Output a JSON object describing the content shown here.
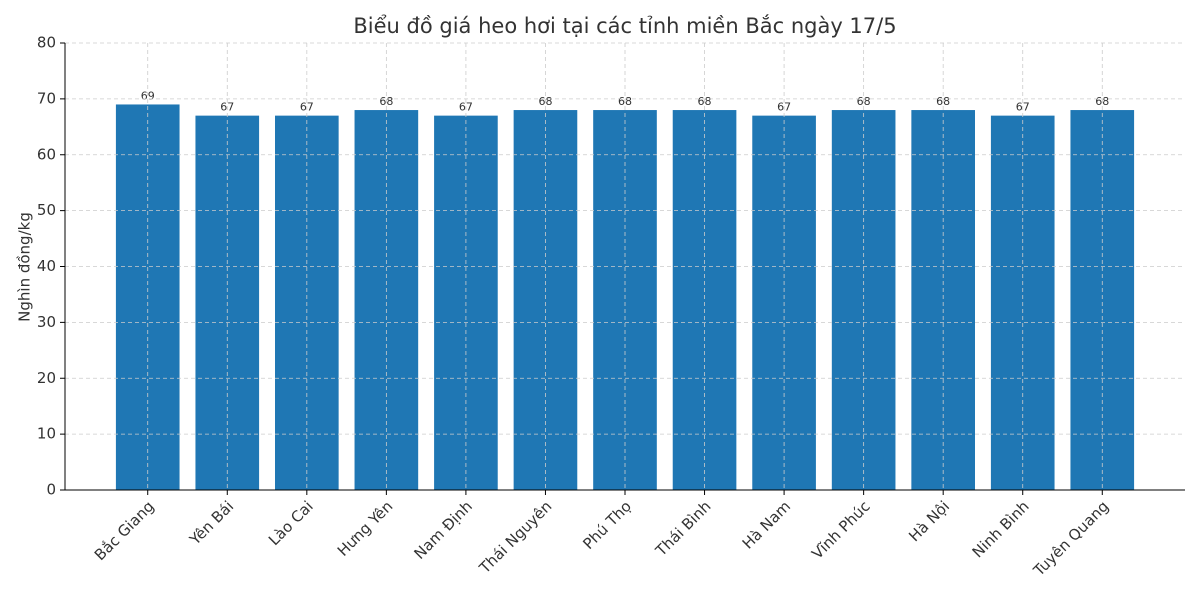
{
  "chart_data": {
    "type": "bar",
    "title": "Biểu đồ giá heo hơi tại các tỉnh miền Bắc ngày 17/5",
    "y_label": "Nghìn đồng/kg",
    "categories": [
      "Bắc Giang",
      "Yên Bái",
      "Lào Cai",
      "Hưng Yên",
      "Nam Định",
      "Thái Nguyên",
      "Phú Thọ",
      "Thái Bình",
      "Hà Nam",
      "Vĩnh Phúc",
      "Hà Nội",
      "Ninh Bình",
      "Tuyên Quang"
    ],
    "values": [
      69,
      67,
      67,
      68,
      67,
      68,
      68,
      68,
      67,
      68,
      68,
      67,
      68
    ],
    "color": "#1f77b4",
    "ylim": [
      0,
      80
    ],
    "yticks": [
      0,
      10,
      20,
      30,
      40,
      50,
      60,
      70,
      80
    ],
    "grid": true
  }
}
